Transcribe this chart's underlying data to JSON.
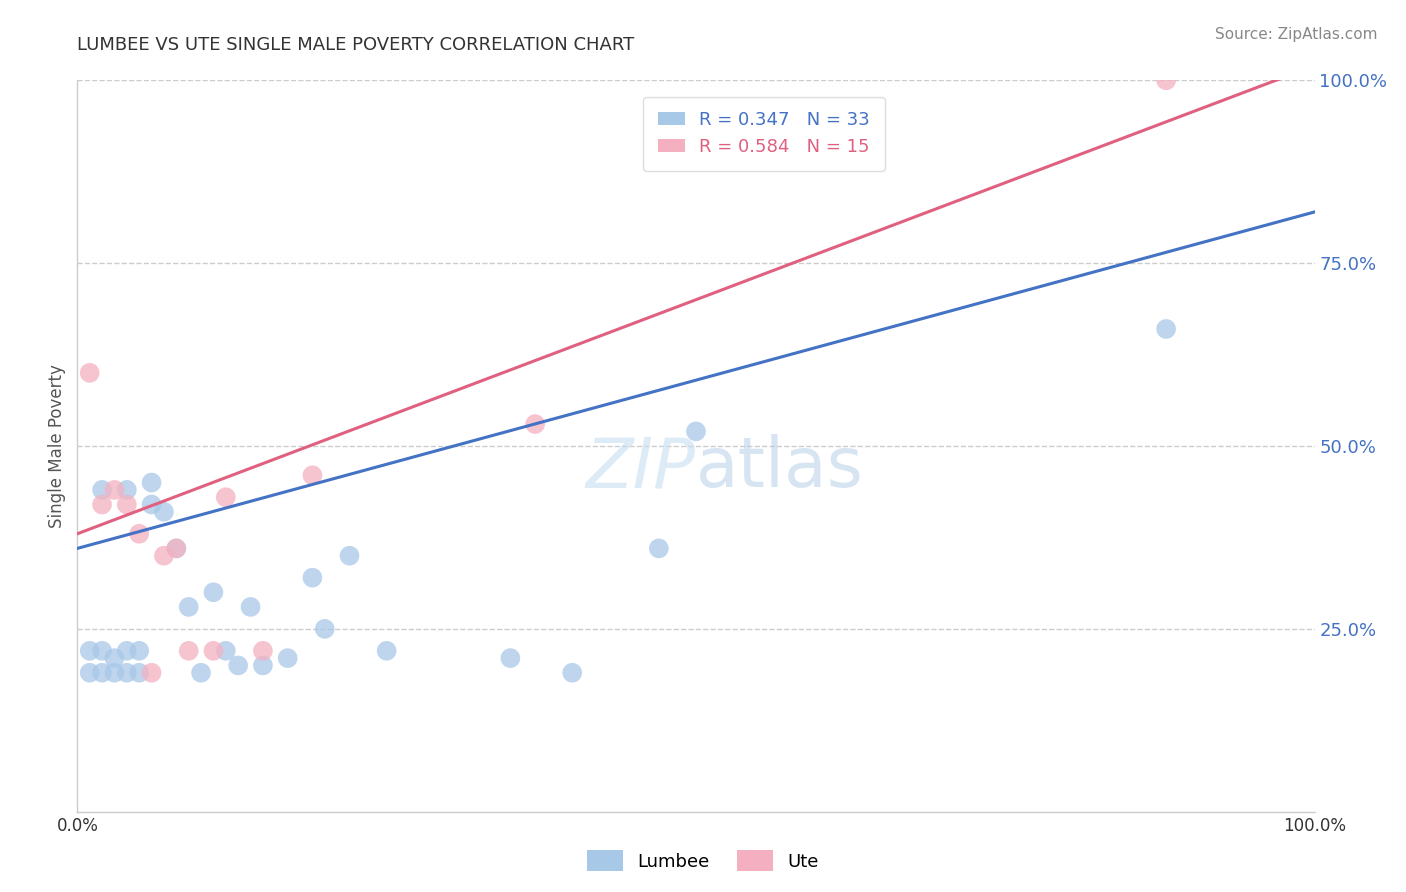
{
  "title": "LUMBEE VS UTE SINGLE MALE POVERTY CORRELATION CHART",
  "source": "Source: ZipAtlas.com",
  "ylabel": "Single Male Poverty",
  "xlim": [
    0,
    1
  ],
  "ylim": [
    0,
    1
  ],
  "yticks": [
    0.25,
    0.5,
    0.75,
    1.0
  ],
  "ytick_labels": [
    "25.0%",
    "50.0%",
    "75.0%",
    "100.0%"
  ],
  "xticks": [
    0,
    0.25,
    0.5,
    0.75,
    1.0
  ],
  "xtick_labels": [
    "0.0%",
    "",
    "",
    "",
    "100.0%"
  ],
  "lumbee_R": 0.347,
  "lumbee_N": 33,
  "ute_R": 0.584,
  "ute_N": 15,
  "lumbee_color": "#a8c8e8",
  "ute_color": "#f4b0c0",
  "lumbee_line_color": "#4472c4",
  "ute_line_color": "#e06080",
  "background_color": "#ffffff",
  "lumbee_x": [
    0.01,
    0.01,
    0.02,
    0.02,
    0.02,
    0.03,
    0.03,
    0.04,
    0.04,
    0.04,
    0.05,
    0.05,
    0.06,
    0.06,
    0.07,
    0.08,
    0.09,
    0.1,
    0.11,
    0.12,
    0.13,
    0.14,
    0.15,
    0.17,
    0.19,
    0.2,
    0.22,
    0.25,
    0.35,
    0.4,
    0.47,
    0.5,
    0.88
  ],
  "lumbee_y": [
    0.19,
    0.22,
    0.19,
    0.22,
    0.44,
    0.19,
    0.21,
    0.19,
    0.22,
    0.44,
    0.19,
    0.22,
    0.42,
    0.45,
    0.41,
    0.36,
    0.28,
    0.19,
    0.3,
    0.22,
    0.2,
    0.28,
    0.2,
    0.21,
    0.32,
    0.25,
    0.35,
    0.22,
    0.21,
    0.19,
    0.36,
    0.52,
    0.66
  ],
  "ute_x": [
    0.01,
    0.02,
    0.03,
    0.04,
    0.05,
    0.06,
    0.07,
    0.08,
    0.09,
    0.11,
    0.12,
    0.15,
    0.19,
    0.37,
    0.88
  ],
  "ute_y": [
    0.6,
    0.42,
    0.44,
    0.42,
    0.38,
    0.19,
    0.35,
    0.36,
    0.22,
    0.22,
    0.43,
    0.22,
    0.46,
    0.53,
    1.0
  ],
  "lumbee_trend_x": [
    0.0,
    1.0
  ],
  "lumbee_trend_y": [
    0.36,
    0.82
  ],
  "ute_trend_x": [
    0.0,
    1.0
  ],
  "ute_trend_y": [
    0.38,
    1.02
  ]
}
